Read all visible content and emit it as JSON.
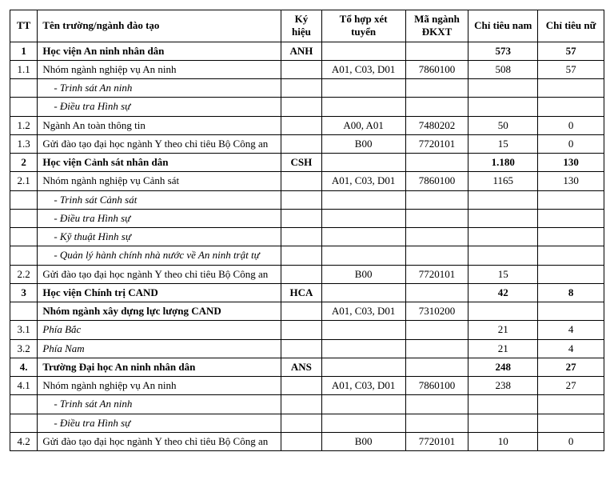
{
  "columns": {
    "tt": "TT",
    "name": "Tên trường/ngành đào tạo",
    "ky_hieu": "Ký hiệu",
    "to_hop": "Tổ hợp xét tuyển",
    "ma_nganh": "Mã ngành ĐKXT",
    "chi_tieu_nam": "Chỉ tiêu nam",
    "chi_tieu_nu": "Chỉ tiêu nữ"
  },
  "rows": [
    {
      "type": "header",
      "tt": "1",
      "name": "Học viện An ninh nhân dân",
      "ky_hieu": "ANH",
      "to_hop": "",
      "ma_nganh": "",
      "ctn": "573",
      "ctnu": "57"
    },
    {
      "type": "normal",
      "tt": "1.1",
      "name": "Nhóm ngành nghiệp vụ An ninh",
      "ky_hieu": "",
      "to_hop": "A01, C03, D01",
      "ma_nganh": "7860100",
      "ctn": "508",
      "ctnu": "57"
    },
    {
      "type": "sub",
      "tt": "",
      "name": "- Trinh sát An ninh",
      "ky_hieu": "",
      "to_hop": "",
      "ma_nganh": "",
      "ctn": "",
      "ctnu": ""
    },
    {
      "type": "sub",
      "tt": "",
      "name": "- Điều tra Hình sự",
      "ky_hieu": "",
      "to_hop": "",
      "ma_nganh": "",
      "ctn": "",
      "ctnu": ""
    },
    {
      "type": "normal",
      "tt": "1.2",
      "name": "Ngành An toàn thông tin",
      "ky_hieu": "",
      "to_hop": "A00, A01",
      "ma_nganh": "7480202",
      "ctn": "50",
      "ctnu": "0"
    },
    {
      "type": "normal",
      "tt": "1.3",
      "name": "Gửi đào tạo đại học ngành Y theo chỉ tiêu Bộ Công an",
      "ky_hieu": "",
      "to_hop": "B00",
      "ma_nganh": "7720101",
      "ctn": "15",
      "ctnu": "0"
    },
    {
      "type": "header",
      "tt": "2",
      "name": "Học viện Cảnh sát nhân dân",
      "ky_hieu": "CSH",
      "to_hop": "",
      "ma_nganh": "",
      "ctn": "1.180",
      "ctnu": "130"
    },
    {
      "type": "normal",
      "tt": "2.1",
      "name": "Nhóm ngành nghiệp vụ Cảnh sát",
      "ky_hieu": "",
      "to_hop": "A01, C03, D01",
      "ma_nganh": "7860100",
      "ctn": "1165",
      "ctnu": "130"
    },
    {
      "type": "sub",
      "tt": "",
      "name": "- Trinh sát Cảnh sát",
      "ky_hieu": "",
      "to_hop": "",
      "ma_nganh": "",
      "ctn": "",
      "ctnu": ""
    },
    {
      "type": "sub",
      "tt": "",
      "name": "- Điều tra Hình sự",
      "ky_hieu": "",
      "to_hop": "",
      "ma_nganh": "",
      "ctn": "",
      "ctnu": ""
    },
    {
      "type": "sub",
      "tt": "",
      "name": "- Kỹ thuật Hình sự",
      "ky_hieu": "",
      "to_hop": "",
      "ma_nganh": "",
      "ctn": "",
      "ctnu": ""
    },
    {
      "type": "sub",
      "tt": "",
      "name": "- Quản lý hành chính nhà nước về An ninh trật tự",
      "ky_hieu": "",
      "to_hop": "",
      "ma_nganh": "",
      "ctn": "",
      "ctnu": ""
    },
    {
      "type": "normal",
      "tt": "2.2",
      "name": "Gửi đào tạo đại học ngành Y theo chỉ tiêu Bộ Công an",
      "ky_hieu": "",
      "to_hop": "B00",
      "ma_nganh": "7720101",
      "ctn": "15",
      "ctnu": ""
    },
    {
      "type": "header",
      "tt": "3",
      "name": "Học viện Chính trị CAND",
      "ky_hieu": "HCA",
      "to_hop": "",
      "ma_nganh": "",
      "ctn": "42",
      "ctnu": "8"
    },
    {
      "type": "boldname",
      "tt": "",
      "name": "Nhóm ngành xây dựng lực lượng CAND",
      "ky_hieu": "",
      "to_hop": "A01, C03, D01",
      "ma_nganh": "7310200",
      "ctn": "",
      "ctnu": ""
    },
    {
      "type": "italic",
      "tt": "3.1",
      "name": "Phía Bắc",
      "ky_hieu": "",
      "to_hop": "",
      "ma_nganh": "",
      "ctn": "21",
      "ctnu": "4"
    },
    {
      "type": "italic",
      "tt": "3.2",
      "name": "Phía Nam",
      "ky_hieu": "",
      "to_hop": "",
      "ma_nganh": "",
      "ctn": "21",
      "ctnu": "4"
    },
    {
      "type": "header",
      "tt": "4.",
      "name": "Trường Đại học An ninh nhân dân",
      "ky_hieu": "ANS",
      "to_hop": "",
      "ma_nganh": "",
      "ctn": "248",
      "ctnu": "27"
    },
    {
      "type": "normal",
      "tt": "4.1",
      "name": "Nhóm ngành nghiệp vụ An ninh",
      "ky_hieu": "",
      "to_hop": "A01, C03, D01",
      "ma_nganh": "7860100",
      "ctn": "238",
      "ctnu": "27"
    },
    {
      "type": "sub",
      "tt": "",
      "name": "- Trinh sát An ninh",
      "ky_hieu": "",
      "to_hop": "",
      "ma_nganh": "",
      "ctn": "",
      "ctnu": ""
    },
    {
      "type": "sub",
      "tt": "",
      "name": "- Điều tra Hình sự",
      "ky_hieu": "",
      "to_hop": "",
      "ma_nganh": "",
      "ctn": "",
      "ctnu": ""
    },
    {
      "type": "normal",
      "tt": "4.2",
      "name": "Gửi đào tạo đại học ngành Y theo chỉ tiêu Bộ Công an",
      "ky_hieu": "",
      "to_hop": "B00",
      "ma_nganh": "7720101",
      "ctn": "10",
      "ctnu": "0"
    }
  ]
}
